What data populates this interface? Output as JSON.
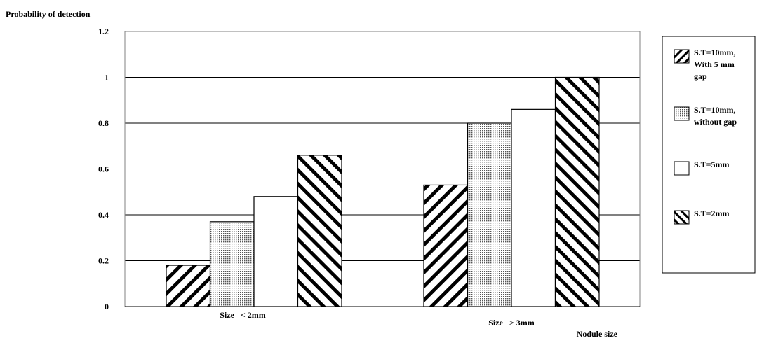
{
  "chart_data": {
    "type": "bar",
    "ylabel": "Probability of detection",
    "xlabel": "Nodule size",
    "ylim": [
      0,
      1.2
    ],
    "yticks": [
      "0",
      "0.2",
      "0.4",
      "0.6",
      "0.8",
      "1",
      "1.2"
    ],
    "categories": [
      "Size   < 2mm",
      "Size   > 3mm"
    ],
    "series": [
      {
        "name": "S.T=10mm, With 5 mm gap",
        "legend_lines": [
          "S.T=10mm,",
          "With 5 mm",
          "gap"
        ],
        "pattern": "fwd-diag",
        "values": [
          0.18,
          0.53
        ]
      },
      {
        "name": "S.T=10mm, without gap",
        "legend_lines": [
          "S.T=10mm,",
          "without gap"
        ],
        "pattern": "dots",
        "values": [
          0.37,
          0.8
        ]
      },
      {
        "name": "S.T=5mm",
        "legend_lines": [
          "S.T=5mm"
        ],
        "pattern": "none",
        "values": [
          0.48,
          0.86
        ]
      },
      {
        "name": "S.T=2mm",
        "legend_lines": [
          "S.T=2mm"
        ],
        "pattern": "back-diag",
        "values": [
          0.66,
          1.0
        ]
      }
    ],
    "grid": true,
    "legend_position": "right"
  }
}
